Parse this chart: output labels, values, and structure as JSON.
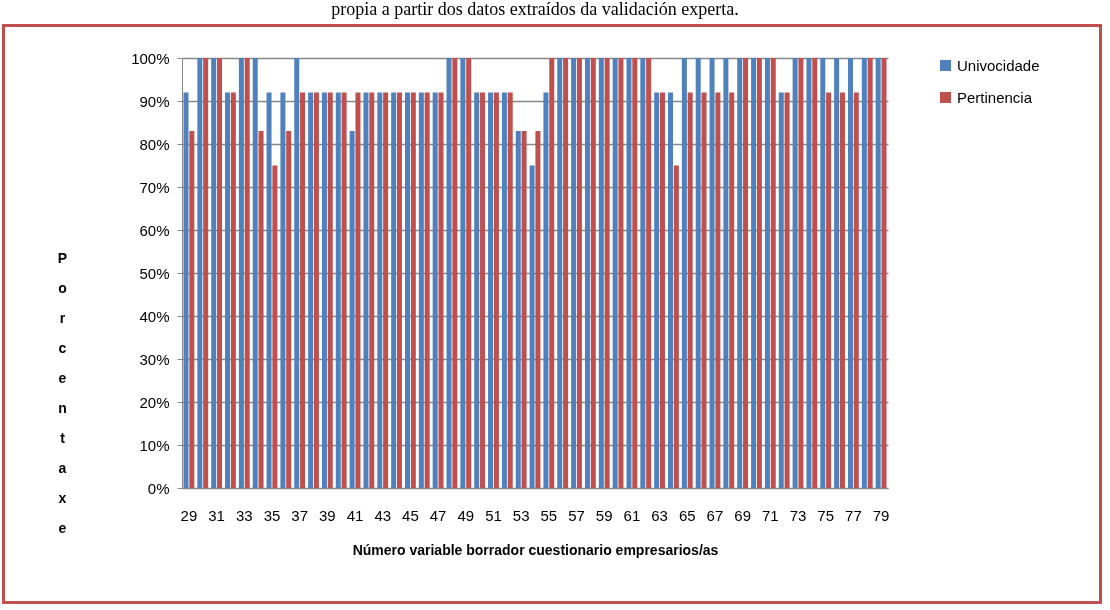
{
  "chart_data": {
    "type": "bar",
    "title": "propia a partir dos datos extraídos da validación experta.",
    "xlabel": "Número  variable borrador cuestionario empresarios/as",
    "ylabel": "Porcentaxe",
    "categories": [
      "29",
      null,
      "31",
      null,
      "33",
      null,
      "35",
      null,
      "37",
      null,
      "39",
      null,
      "41",
      null,
      "43",
      null,
      "45",
      null,
      "47",
      null,
      "49",
      null,
      "51",
      null,
      "53",
      null,
      "55",
      null,
      "57",
      null,
      "59",
      null,
      "61",
      null,
      "63",
      null,
      "65",
      null,
      "67",
      null,
      "69",
      null,
      "71",
      null,
      "73",
      null,
      "75",
      null,
      "77",
      null,
      "79"
    ],
    "series": [
      {
        "name": "Univocidade",
        "color": "#4f81bd",
        "values": [
          92,
          100,
          100,
          92,
          100,
          100,
          92,
          92,
          100,
          92,
          92,
          92,
          83,
          92,
          92,
          92,
          92,
          92,
          92,
          100,
          100,
          92,
          92,
          92,
          83,
          75,
          92,
          100,
          100,
          100,
          100,
          100,
          100,
          100,
          92,
          92,
          100,
          100,
          100,
          100,
          100,
          100,
          100,
          92,
          100,
          100,
          100,
          100,
          100,
          100,
          100
        ]
      },
      {
        "name": "Pertinencia",
        "color": "#c0504d",
        "values": [
          83,
          100,
          100,
          92,
          100,
          83,
          75,
          83,
          92,
          92,
          92,
          92,
          92,
          92,
          92,
          92,
          92,
          92,
          92,
          100,
          100,
          92,
          92,
          92,
          83,
          83,
          100,
          100,
          100,
          100,
          100,
          100,
          100,
          100,
          92,
          75,
          92,
          92,
          92,
          92,
          100,
          100,
          100,
          92,
          100,
          100,
          92,
          92,
          92,
          100,
          100
        ]
      }
    ],
    "ylim": [
      0,
      100
    ],
    "yticks": [
      {
        "value": 0,
        "label": "0%"
      },
      {
        "value": 10,
        "label": "10%"
      },
      {
        "value": 20,
        "label": "20%"
      },
      {
        "value": 30,
        "label": "30%"
      },
      {
        "value": 40,
        "label": "40%"
      },
      {
        "value": 50,
        "label": "50%"
      },
      {
        "value": 60,
        "label": "60%"
      },
      {
        "value": 70,
        "label": "70%"
      },
      {
        "value": 80,
        "label": "80%"
      },
      {
        "value": 90,
        "label": "90%"
      },
      {
        "value": 100,
        "label": "100%"
      }
    ],
    "grid": "y",
    "legend": "right"
  }
}
